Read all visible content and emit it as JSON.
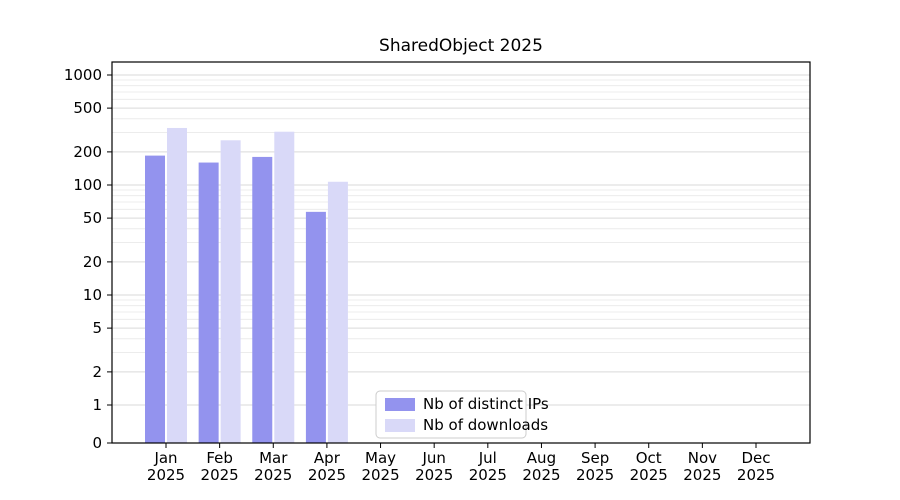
{
  "chart_data": {
    "type": "bar",
    "title": "SharedObject 2025",
    "categories": [
      "Jan",
      "Feb",
      "Mar",
      "Apr",
      "May",
      "Jun",
      "Jul",
      "Aug",
      "Sep",
      "Oct",
      "Nov",
      "Dec"
    ],
    "x_year": "2025",
    "series": [
      {
        "name": "Nb of distinct IPs",
        "color": "#9393ee",
        "values": [
          185,
          160,
          180,
          57,
          0,
          0,
          0,
          0,
          0,
          0,
          0,
          0
        ]
      },
      {
        "name": "Nb of downloads",
        "color": "#d9d9f8",
        "values": [
          330,
          255,
          305,
          107,
          0,
          0,
          0,
          0,
          0,
          0,
          0,
          0
        ]
      }
    ],
    "y_ticks": [
      0,
      1,
      2,
      5,
      10,
      20,
      50,
      100,
      200,
      500,
      1000
    ],
    "y_minor_ticks": [
      3,
      4,
      6,
      7,
      8,
      9,
      30,
      40,
      60,
      70,
      80,
      90,
      300,
      400,
      600,
      700,
      800,
      900
    ],
    "y_scale": "symlog",
    "ylim": [
      0,
      1400
    ],
    "grid": true,
    "legend": {
      "position": "bottom-center"
    },
    "colors": {
      "grid_major": "#d9d9d9",
      "grid_minor": "#ececec",
      "axis": "#000000",
      "legend_border": "#cccccc",
      "background": "#ffffff"
    }
  }
}
